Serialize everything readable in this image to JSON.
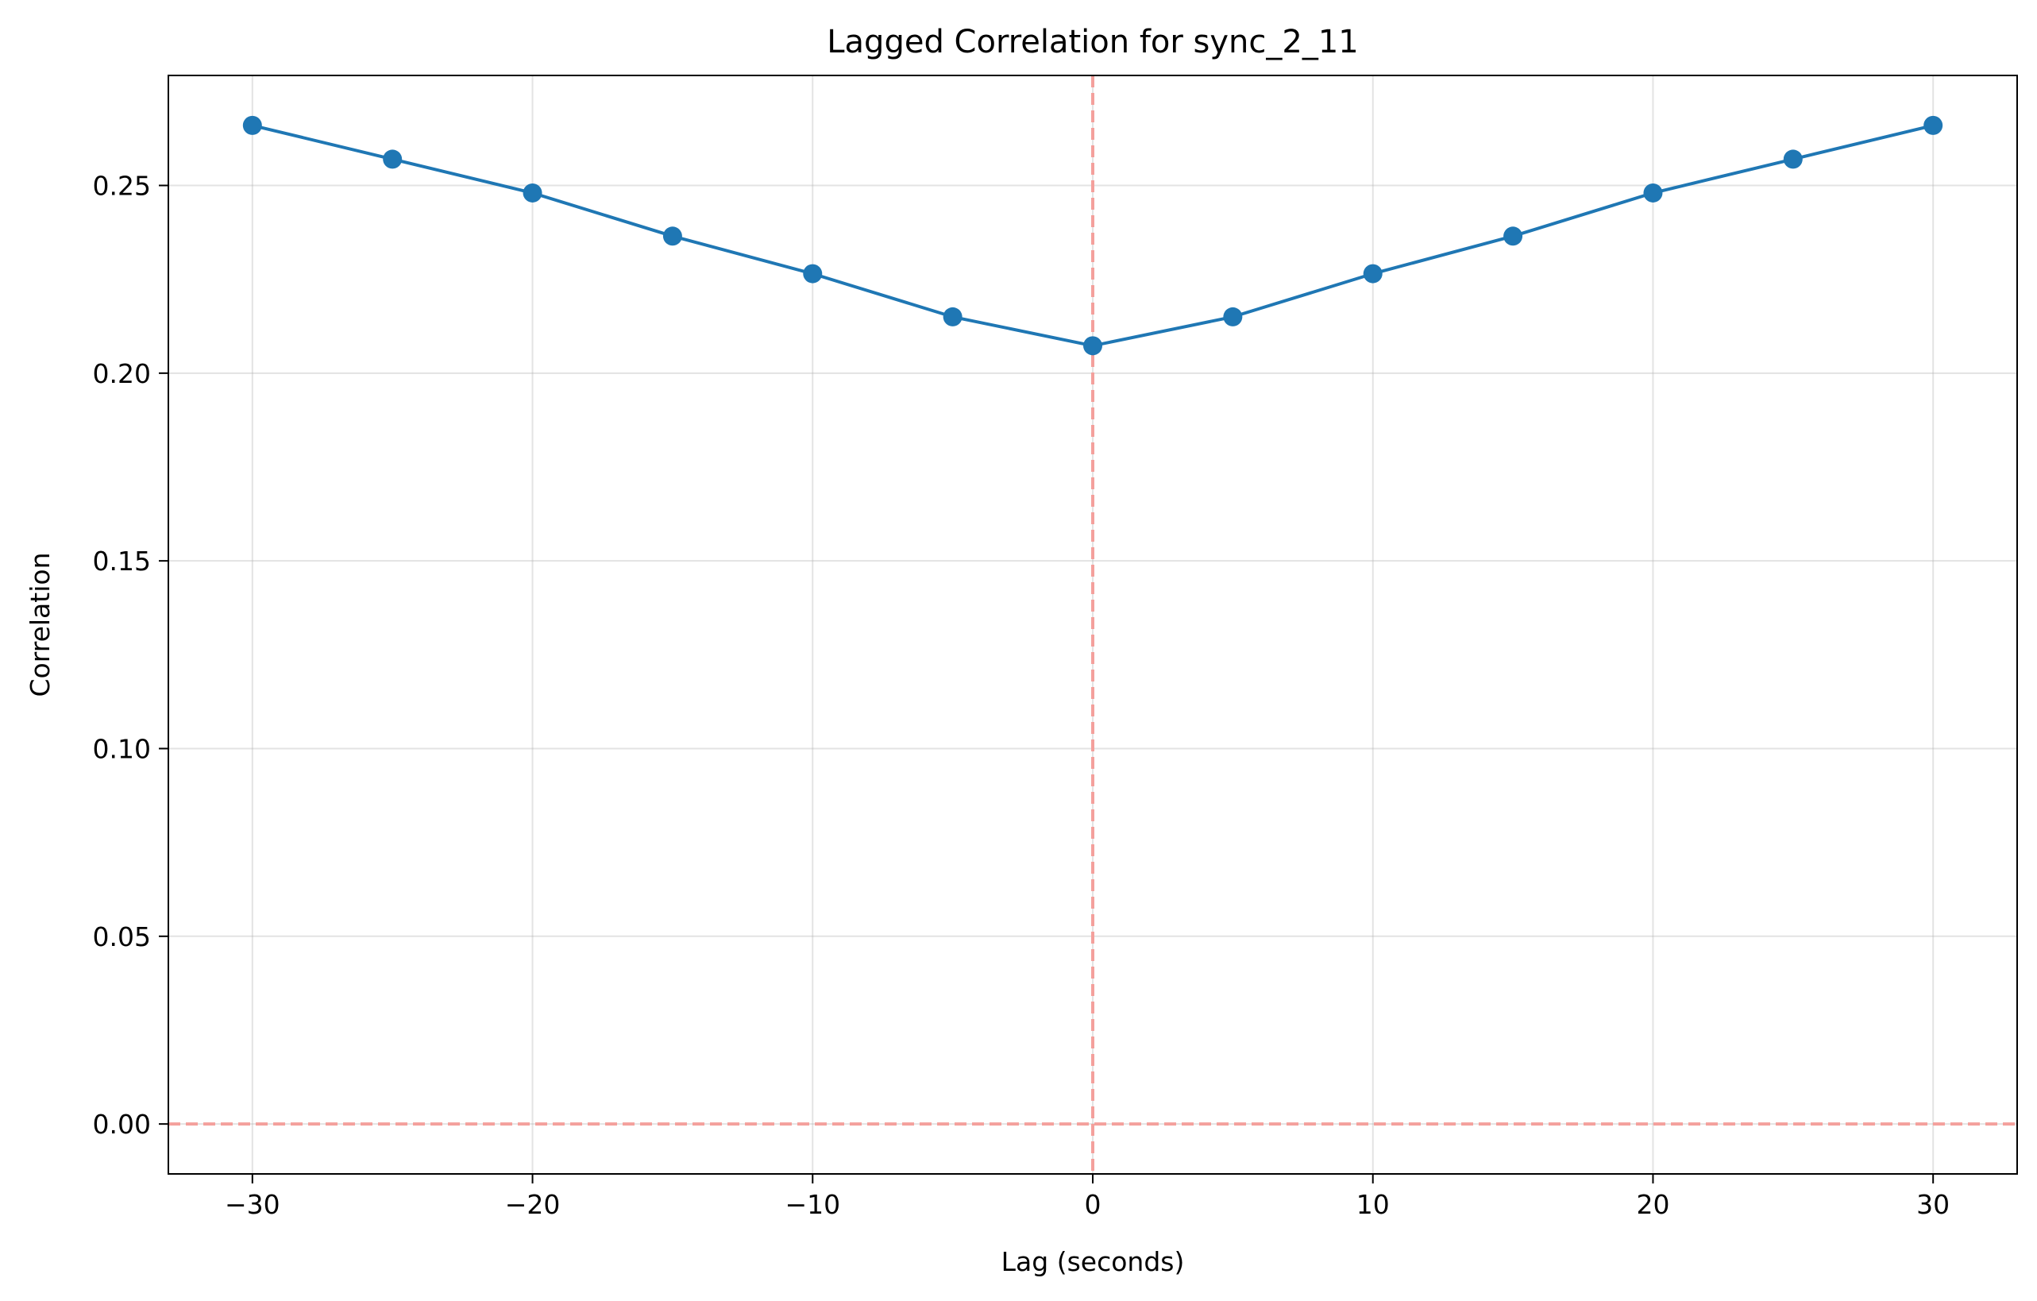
{
  "chart_data": {
    "type": "line",
    "title": "Lagged Correlation for sync_2_11",
    "xlabel": "Lag (seconds)",
    "ylabel": "Correlation",
    "xlim": [
      -33,
      33
    ],
    "ylim": [
      -0.0133,
      0.2793
    ],
    "xticks": [
      -30,
      -20,
      -10,
      0,
      10,
      20,
      30
    ],
    "xtick_labels": [
      "−30",
      "−20",
      "−10",
      "0",
      "10",
      "20",
      "30"
    ],
    "yticks": [
      0.0,
      0.05,
      0.1,
      0.15,
      0.2,
      0.25
    ],
    "ytick_labels": [
      "0.00",
      "0.05",
      "0.10",
      "0.15",
      "0.20",
      "0.25"
    ],
    "grid": true,
    "series": [
      {
        "name": "correlation",
        "color": "#1f77b4",
        "marker": "circle",
        "x": [
          -30,
          -25,
          -20,
          -15,
          -10,
          -5,
          0,
          5,
          10,
          15,
          20,
          25,
          30
        ],
        "y": [
          0.266,
          0.257,
          0.248,
          0.2365,
          0.2265,
          0.215,
          0.2073,
          0.215,
          0.2265,
          0.2365,
          0.248,
          0.257,
          0.266
        ]
      }
    ],
    "reference_lines": [
      {
        "orientation": "vertical",
        "value": 0,
        "style": "dashed",
        "color": "#f4a09c"
      },
      {
        "orientation": "horizontal",
        "value": 0,
        "style": "dashed",
        "color": "#f4a09c"
      }
    ]
  }
}
